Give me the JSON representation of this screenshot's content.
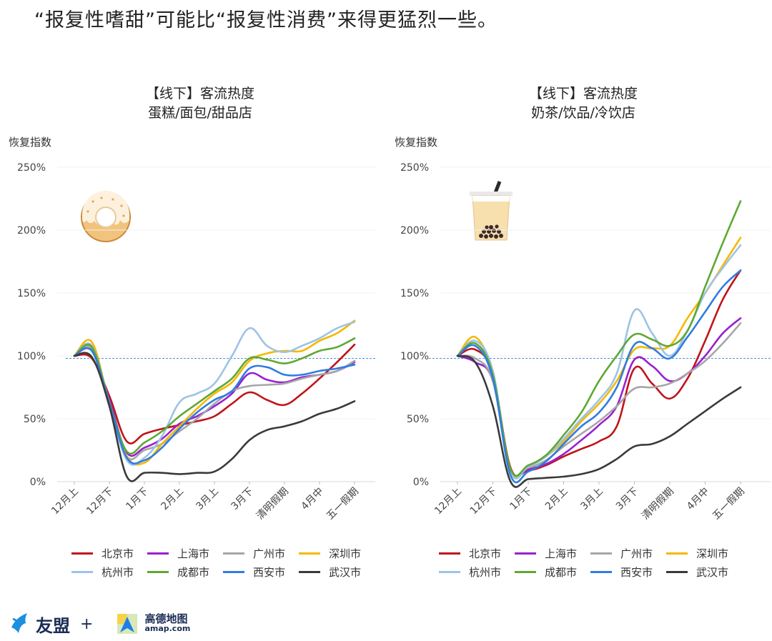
{
  "headline": "“报复性嗜甜”可能比“报复性消费”来得更猛烈一些。",
  "y_axis_label": "恢复指数",
  "legend": [
    {
      "name": "北京市",
      "color": "#c0141a"
    },
    {
      "name": "上海市",
      "color": "#9a20d0"
    },
    {
      "name": "广州市",
      "color": "#a6a6a6"
    },
    {
      "name": "深圳市",
      "color": "#f5b800"
    },
    {
      "name": "杭州市",
      "color": "#9dc3e6"
    },
    {
      "name": "成都市",
      "color": "#5fa832"
    },
    {
      "name": "西安市",
      "color": "#2f7de1"
    },
    {
      "name": "武汉市",
      "color": "#3a3a3a"
    }
  ],
  "footer": {
    "brand1": "友盟",
    "plus": "+",
    "brand2": "高德地图",
    "brand2_url": "amap.com"
  },
  "chart_data": [
    {
      "type": "line",
      "title": "【线下】客流热度",
      "subtitle": "蛋糕/面包/甜品店",
      "ylabel": "恢复指数",
      "icon": "donut-icon",
      "ylim": [
        0,
        250
      ],
      "yticks": [
        "0%",
        "50%",
        "100%",
        "150%",
        "200%",
        "250%"
      ],
      "reference_line": 98,
      "categories": [
        "12月上",
        "12月下",
        "1月下",
        "2月上",
        "3月上",
        "3月下",
        "清明假期",
        "4月中",
        "五一假期"
      ],
      "x": [
        1,
        1.5,
        2,
        2.5,
        3,
        3.5,
        4,
        4.5,
        5,
        5.5,
        6,
        6.5,
        7,
        7.5,
        8,
        8.5,
        9
      ],
      "series": [
        {
          "name": "北京市",
          "values": [
            100,
            98,
            68,
            32,
            38,
            42,
            45,
            48,
            52,
            62,
            71,
            65,
            61,
            70,
            82,
            95,
            109
          ]
        },
        {
          "name": "上海市",
          "values": [
            100,
            104,
            65,
            23,
            27,
            34,
            46,
            52,
            60,
            70,
            86,
            81,
            79,
            83,
            85,
            88,
            95
          ]
        },
        {
          "name": "广州市",
          "values": [
            100,
            106,
            62,
            20,
            25,
            30,
            40,
            50,
            62,
            72,
            76,
            77,
            78,
            82,
            85,
            88,
            96
          ]
        },
        {
          "name": "深圳市",
          "values": [
            100,
            111,
            62,
            20,
            15,
            30,
            44,
            58,
            70,
            79,
            96,
            102,
            104,
            104,
            112,
            118,
            128
          ]
        },
        {
          "name": "杭州市",
          "values": [
            100,
            108,
            62,
            17,
            19,
            36,
            63,
            70,
            78,
            100,
            122,
            108,
            103,
            108,
            114,
            122,
            127
          ]
        },
        {
          "name": "成都市",
          "values": [
            100,
            107,
            63,
            24,
            31,
            40,
            52,
            62,
            72,
            82,
            98,
            97,
            94,
            98,
            104,
            107,
            114
          ]
        },
        {
          "name": "西安市",
          "values": [
            100,
            104,
            62,
            19,
            17,
            27,
            42,
            55,
            65,
            72,
            90,
            91,
            85,
            85,
            88,
            90,
            93
          ]
        },
        {
          "name": "武汉市",
          "values": [
            100,
            99,
            60,
            4,
            7,
            7,
            6,
            7,
            8,
            18,
            33,
            41,
            44,
            48,
            54,
            58,
            64
          ]
        }
      ]
    },
    {
      "type": "line",
      "title": "【线下】客流热度",
      "subtitle": "奶茶/饮品/冷饮店",
      "ylabel": "恢复指数",
      "icon": "bubble-tea-icon",
      "ylim": [
        0,
        250
      ],
      "yticks": [
        "0%",
        "50%",
        "100%",
        "150%",
        "200%",
        "250%"
      ],
      "reference_line": 98,
      "categories": [
        "12月上",
        "12月下",
        "1月下",
        "2月上",
        "3月上",
        "3月下",
        "清明假期",
        "4月中",
        "五一假期"
      ],
      "x": [
        1,
        1.5,
        2,
        2.5,
        3,
        3.5,
        4,
        4.5,
        5,
        5.5,
        6,
        6.5,
        7,
        7.5,
        8,
        8.5,
        9
      ],
      "series": [
        {
          "name": "北京市",
          "values": [
            100,
            105,
            85,
            11,
            9,
            13,
            20,
            26,
            32,
            44,
            90,
            78,
            66,
            82,
            112,
            145,
            168
          ]
        },
        {
          "name": "上海市",
          "values": [
            100,
            95,
            80,
            9,
            10,
            14,
            22,
            33,
            45,
            60,
            97,
            92,
            80,
            86,
            100,
            118,
            130
          ]
        },
        {
          "name": "广州市",
          "values": [
            100,
            98,
            80,
            10,
            11,
            17,
            28,
            38,
            48,
            60,
            74,
            75,
            78,
            86,
            96,
            110,
            126
          ]
        },
        {
          "name": "深圳市",
          "values": [
            100,
            115,
            85,
            9,
            12,
            20,
            32,
            48,
            62,
            80,
            105,
            106,
            108,
            130,
            150,
            172,
            194
          ]
        },
        {
          "name": "杭州市",
          "values": [
            100,
            112,
            88,
            8,
            12,
            20,
            34,
            50,
            65,
            86,
            136,
            118,
            100,
            120,
            150,
            170,
            188
          ]
        },
        {
          "name": "成都市",
          "values": [
            100,
            110,
            85,
            10,
            13,
            21,
            37,
            55,
            80,
            100,
            117,
            113,
            108,
            120,
            155,
            190,
            223
          ]
        },
        {
          "name": "西安市",
          "values": [
            100,
            108,
            82,
            5,
            8,
            16,
            30,
            44,
            55,
            75,
            109,
            106,
            98,
            115,
            135,
            155,
            168
          ]
        },
        {
          "name": "武汉市",
          "values": [
            100,
            95,
            60,
            0,
            2,
            3,
            4,
            6,
            10,
            18,
            28,
            30,
            36,
            46,
            56,
            66,
            75
          ]
        }
      ]
    }
  ]
}
